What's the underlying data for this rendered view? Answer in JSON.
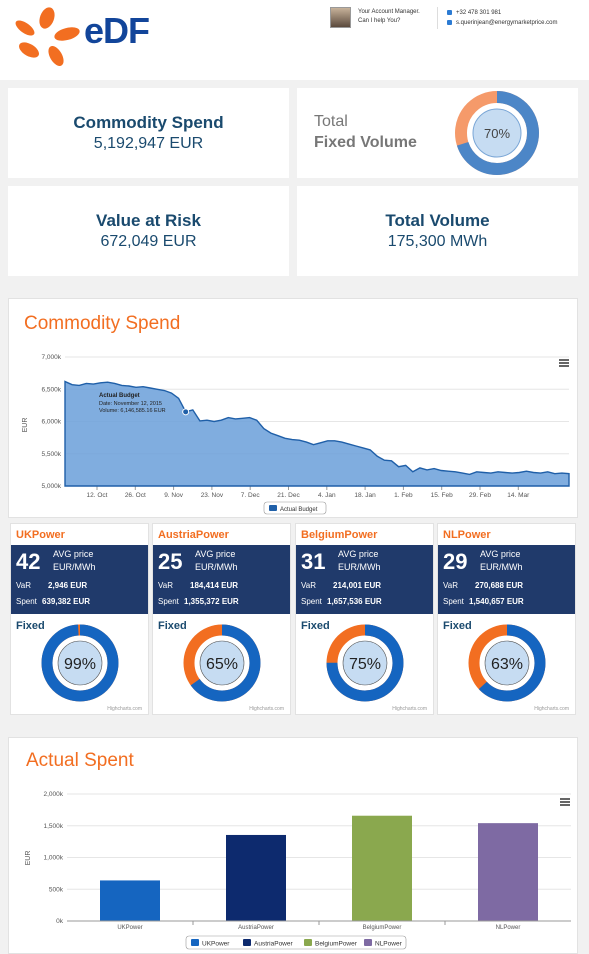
{
  "header": {
    "logo_text": "eDF",
    "manager_line1": "Your Account Manager.",
    "manager_line2": "Can I help You?",
    "phone": "+32 478 301 981",
    "email": "s.querinjean@energymarketprice.com"
  },
  "kpis": {
    "commodity_spend": {
      "title": "Commodity Spend",
      "value": "5,192,947 EUR"
    },
    "fixed_volume": {
      "title_line1": "Total",
      "title_line2": "Fixed Volume",
      "percent_label": "70%",
      "percent": 70
    },
    "value_at_risk": {
      "title": "Value at Risk",
      "value": "672,049 EUR"
    },
    "total_volume": {
      "title": "Total Volume",
      "value": "175,300 MWh"
    }
  },
  "commodity_chart": {
    "panel_title": "Commodity Spend",
    "chart_data": {
      "type": "area",
      "ylabel": "EUR",
      "ylim": [
        5000,
        7000
      ],
      "y_ticks": [
        "5,000k",
        "5,500k",
        "6,000k",
        "6,500k",
        "7,000k"
      ],
      "x_ticks": [
        "12. Oct",
        "26. Oct",
        "9. Nov",
        "23. Nov",
        "7. Dec",
        "21. Dec",
        "4. Jan",
        "18. Jan",
        "1. Feb",
        "15. Feb",
        "29. Feb",
        "14. Mar"
      ],
      "series_name": "Actual Budget",
      "values": [
        6620,
        6570,
        6560,
        6590,
        6580,
        6600,
        6610,
        6590,
        6560,
        6550,
        6530,
        6540,
        6520,
        6500,
        6480,
        6440,
        6360,
        6150,
        6180,
        6010,
        6020,
        6000,
        6020,
        6060,
        6040,
        6050,
        6060,
        6020,
        5890,
        5820,
        5780,
        5740,
        5720,
        5710,
        5680,
        5640,
        5670,
        5700,
        5700,
        5680,
        5650,
        5620,
        5590,
        5560,
        5460,
        5400,
        5390,
        5300,
        5320,
        5220,
        5280,
        5250,
        5270,
        5240,
        5230,
        5220,
        5200,
        5180,
        5220,
        5210,
        5200,
        5220,
        5210,
        5200,
        5210,
        5230,
        5210,
        5200,
        5220,
        5190,
        5200,
        5190
      ],
      "tooltip": {
        "title": "Actual Budget",
        "date": "Date: November 12, 2015",
        "volume": "Volume: 6,146,585.16 EUR"
      }
    }
  },
  "regions": [
    {
      "name": "UKPower",
      "avg": "42",
      "avg_label": "AVG price",
      "unit": "EUR/MWh",
      "var_label": "VaR",
      "var": "2,946 EUR",
      "spent_label": "Spent",
      "spent": "639,382 EUR",
      "fixed_label": "Fixed",
      "percent_label": "99%",
      "percent": 99,
      "credit": "Highcharts.com"
    },
    {
      "name": "AustriaPower",
      "avg": "25",
      "avg_label": "AVG price",
      "unit": "EUR/MWh",
      "var_label": "VaR",
      "var": "184,414 EUR",
      "spent_label": "Spent",
      "spent": "1,355,372 EUR",
      "fixed_label": "Fixed",
      "percent_label": "65%",
      "percent": 65,
      "credit": "Highcharts.com"
    },
    {
      "name": "BelgiumPower",
      "avg": "31",
      "avg_label": "AVG price",
      "unit": "EUR/MWh",
      "var_label": "VaR",
      "var": "214,001 EUR",
      "spent_label": "Spent",
      "spent": "1,657,536 EUR",
      "fixed_label": "Fixed",
      "percent_label": "75%",
      "percent": 75,
      "credit": "Highcharts.com"
    },
    {
      "name": "NLPower",
      "avg": "29",
      "avg_label": "AVG price",
      "unit": "EUR/MWh",
      "var_label": "VaR",
      "var": "270,688 EUR",
      "spent_label": "Spent",
      "spent": "1,540,657 EUR",
      "fixed_label": "Fixed",
      "percent_label": "63%",
      "percent": 63,
      "credit": "Highcharts.com"
    }
  ],
  "actual_spent": {
    "panel_title": "Actual Spent",
    "chart_data": {
      "type": "bar",
      "ylabel": "EUR",
      "ylim": [
        0,
        2000
      ],
      "y_ticks": [
        "0k",
        "500k",
        "1,000k",
        "1,500k",
        "2,000k"
      ],
      "categories": [
        "UKPower",
        "AustriaPower",
        "BelgiumPower",
        "NLPower"
      ],
      "values": [
        639,
        1355,
        1658,
        1541
      ],
      "colors": [
        "#1565c0",
        "#0d2a6e",
        "#8aa84e",
        "#7e6aa3"
      ]
    }
  },
  "colors": {
    "orange": "#f26e21",
    "navy": "#203a6b",
    "blue": "#1565c0",
    "donut_center": "#c6dcf2"
  }
}
